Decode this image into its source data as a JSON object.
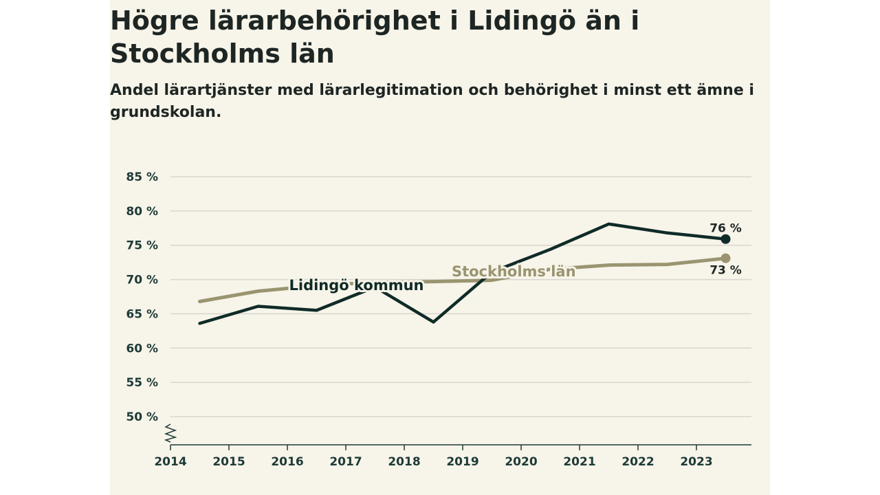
{
  "chart_data": {
    "type": "line",
    "title": "Högre lärarbehörighet i Lidingö än i Stockholms län",
    "subtitle": "Andel lärartjänster med lärarlegitimation och behörighet i minst ett ämne i grundskolan.",
    "xlabel": "",
    "ylabel": "",
    "x_ticks": [
      "2014",
      "2015",
      "2016",
      "2017",
      "2018",
      "2019",
      "2020",
      "2021",
      "2022",
      "2023"
    ],
    "y_ticks": [
      "50 %",
      "55 %",
      "60 %",
      "65 %",
      "70 %",
      "75 %",
      "80 %",
      "85 %"
    ],
    "ylim": [
      46,
      85
    ],
    "grid": true,
    "series": [
      {
        "name": "Stockholms län",
        "color": "#9a9470",
        "x": [
          2014.5,
          2015.5,
          2016.5,
          2017.5,
          2018.5,
          2019.5,
          2020.5,
          2021.5,
          2022.5,
          2023.5
        ],
        "values": [
          66.8,
          68.3,
          69.1,
          69.6,
          69.7,
          69.9,
          71.5,
          72.1,
          72.2,
          73.1
        ],
        "end_label": "73 %"
      },
      {
        "name": "Lidingö kommun",
        "color": "#0f2b27",
        "x": [
          2014.5,
          2015.5,
          2016.5,
          2017.5,
          2018.5,
          2019.5,
          2020.5,
          2021.5,
          2022.5,
          2023.5
        ],
        "values": [
          63.6,
          66.1,
          65.5,
          68.9,
          63.8,
          71.1,
          74.4,
          78.1,
          76.8,
          75.9
        ],
        "end_label": "76 %"
      }
    ]
  }
}
